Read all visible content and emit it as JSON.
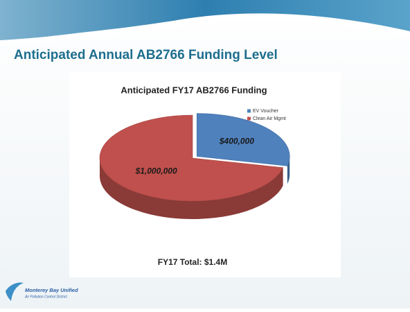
{
  "slide": {
    "title": "Anticipated Annual AB2766 Funding Level",
    "logo_line1": "Monterey Bay Unified",
    "logo_line2": "Air Pollution Control District"
  },
  "chart_data": {
    "type": "pie",
    "title": "Anticipated FY17 AB2766 Funding",
    "categories": [
      "EV Voucher",
      "Clean Air Mgmt"
    ],
    "values": [
      400000,
      1000000
    ],
    "value_labels": [
      "$400,000",
      "$1,000,000"
    ],
    "colors": [
      "#4f81bd",
      "#c0504d"
    ],
    "legend": "upper right",
    "annotation": "FY17 Total:  $1.4M"
  }
}
